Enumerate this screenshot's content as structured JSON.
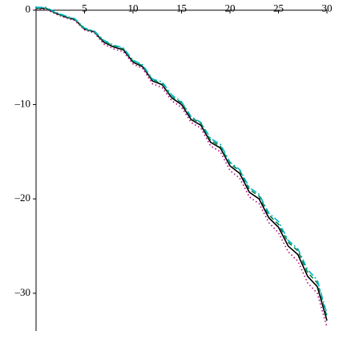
{
  "chart_data": {
    "type": "line",
    "x": [
      0,
      1,
      2,
      3,
      4,
      5,
      6,
      7,
      8,
      9,
      10,
      11,
      12,
      13,
      14,
      15,
      16,
      17,
      18,
      19,
      20,
      21,
      22,
      23,
      24,
      25,
      26,
      27,
      28,
      29,
      30
    ],
    "xlim": [
      0,
      30
    ],
    "ylim": [
      -34,
      0.4
    ],
    "xticks": [
      5,
      10,
      15,
      20,
      25,
      30
    ],
    "yticks": [
      0,
      {
        "value": -10,
        "label": "–10"
      },
      {
        "value": -20,
        "label": "–20"
      },
      {
        "value": -30,
        "label": "–30"
      }
    ],
    "series": [
      {
        "color": "#000000",
        "dash": "none",
        "values": [
          0.2,
          0.2,
          -0.3,
          -0.7,
          -1.0,
          -2.0,
          -2.3,
          -3.4,
          -3.9,
          -4.2,
          -5.5,
          -6.0,
          -7.5,
          -7.9,
          -9.3,
          -10.0,
          -11.6,
          -12.2,
          -14.0,
          -14.6,
          -16.5,
          -17.3,
          -19.3,
          -20.0,
          -22.0,
          -23.0,
          -25.0,
          -25.9,
          -28.2,
          -29.3,
          -32.9
        ]
      },
      {
        "color": "#b5007f",
        "dash": "1.5,3",
        "values": [
          0.1,
          0.1,
          -0.4,
          -0.8,
          -1.1,
          -2.1,
          -2.4,
          -3.6,
          -4.1,
          -4.4,
          -5.7,
          -6.2,
          -7.8,
          -8.2,
          -9.6,
          -10.3,
          -11.9,
          -12.5,
          -14.4,
          -15.0,
          -17.0,
          -17.8,
          -19.8,
          -20.5,
          -22.5,
          -23.6,
          -25.6,
          -26.6,
          -28.9,
          -30.0,
          -33.6
        ]
      },
      {
        "color": "#007f3f",
        "dash": "6,4",
        "values": [
          0.2,
          0.2,
          -0.3,
          -0.7,
          -1.0,
          -2.0,
          -2.3,
          -3.3,
          -3.8,
          -4.1,
          -5.4,
          -5.9,
          -7.4,
          -7.8,
          -9.2,
          -9.8,
          -11.4,
          -12.0,
          -13.8,
          -14.4,
          -16.3,
          -17.0,
          -19.0,
          -19.7,
          -21.7,
          -22.7,
          -24.6,
          -25.5,
          -27.8,
          -28.9,
          -32.5
        ]
      },
      {
        "color": "#00b2c8",
        "dash": "8,3,2,3",
        "values": [
          0.3,
          0.3,
          -0.2,
          -0.6,
          -0.9,
          -1.9,
          -2.2,
          -3.2,
          -3.7,
          -4.0,
          -5.3,
          -5.8,
          -7.3,
          -7.6,
          -9.0,
          -9.7,
          -11.3,
          -11.9,
          -13.6,
          -14.2,
          -16.1,
          -16.9,
          -18.8,
          -19.5,
          -21.5,
          -22.4,
          -24.4,
          -25.3,
          -27.5,
          -28.6,
          -32.2
        ]
      }
    ]
  }
}
